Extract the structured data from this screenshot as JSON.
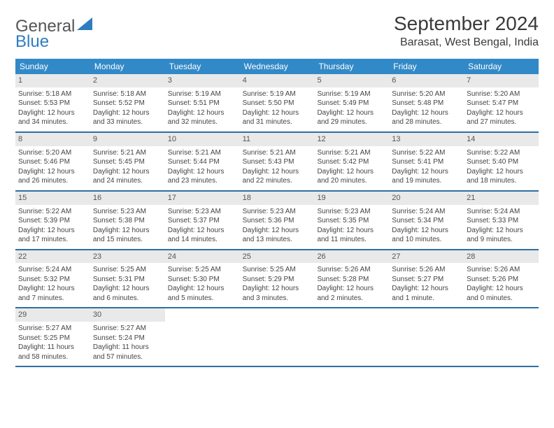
{
  "brand": {
    "part1": "General",
    "part2": "Blue"
  },
  "title": "September 2024",
  "location": "Barasat, West Bengal, India",
  "colors": {
    "header_bg": "#3289c7",
    "week_border": "#2f6fa2",
    "daynum_bg": "#e9e9e9",
    "text": "#444444",
    "brand_gray": "#555555",
    "brand_blue": "#2e7dbf"
  },
  "weekdays": [
    "Sunday",
    "Monday",
    "Tuesday",
    "Wednesday",
    "Thursday",
    "Friday",
    "Saturday"
  ],
  "weeks": [
    [
      {
        "n": "1",
        "sr": "5:18 AM",
        "ss": "5:53 PM",
        "dl": "12 hours and 34 minutes."
      },
      {
        "n": "2",
        "sr": "5:18 AM",
        "ss": "5:52 PM",
        "dl": "12 hours and 33 minutes."
      },
      {
        "n": "3",
        "sr": "5:19 AM",
        "ss": "5:51 PM",
        "dl": "12 hours and 32 minutes."
      },
      {
        "n": "4",
        "sr": "5:19 AM",
        "ss": "5:50 PM",
        "dl": "12 hours and 31 minutes."
      },
      {
        "n": "5",
        "sr": "5:19 AM",
        "ss": "5:49 PM",
        "dl": "12 hours and 29 minutes."
      },
      {
        "n": "6",
        "sr": "5:20 AM",
        "ss": "5:48 PM",
        "dl": "12 hours and 28 minutes."
      },
      {
        "n": "7",
        "sr": "5:20 AM",
        "ss": "5:47 PM",
        "dl": "12 hours and 27 minutes."
      }
    ],
    [
      {
        "n": "8",
        "sr": "5:20 AM",
        "ss": "5:46 PM",
        "dl": "12 hours and 26 minutes."
      },
      {
        "n": "9",
        "sr": "5:21 AM",
        "ss": "5:45 PM",
        "dl": "12 hours and 24 minutes."
      },
      {
        "n": "10",
        "sr": "5:21 AM",
        "ss": "5:44 PM",
        "dl": "12 hours and 23 minutes."
      },
      {
        "n": "11",
        "sr": "5:21 AM",
        "ss": "5:43 PM",
        "dl": "12 hours and 22 minutes."
      },
      {
        "n": "12",
        "sr": "5:21 AM",
        "ss": "5:42 PM",
        "dl": "12 hours and 20 minutes."
      },
      {
        "n": "13",
        "sr": "5:22 AM",
        "ss": "5:41 PM",
        "dl": "12 hours and 19 minutes."
      },
      {
        "n": "14",
        "sr": "5:22 AM",
        "ss": "5:40 PM",
        "dl": "12 hours and 18 minutes."
      }
    ],
    [
      {
        "n": "15",
        "sr": "5:22 AM",
        "ss": "5:39 PM",
        "dl": "12 hours and 17 minutes."
      },
      {
        "n": "16",
        "sr": "5:23 AM",
        "ss": "5:38 PM",
        "dl": "12 hours and 15 minutes."
      },
      {
        "n": "17",
        "sr": "5:23 AM",
        "ss": "5:37 PM",
        "dl": "12 hours and 14 minutes."
      },
      {
        "n": "18",
        "sr": "5:23 AM",
        "ss": "5:36 PM",
        "dl": "12 hours and 13 minutes."
      },
      {
        "n": "19",
        "sr": "5:23 AM",
        "ss": "5:35 PM",
        "dl": "12 hours and 11 minutes."
      },
      {
        "n": "20",
        "sr": "5:24 AM",
        "ss": "5:34 PM",
        "dl": "12 hours and 10 minutes."
      },
      {
        "n": "21",
        "sr": "5:24 AM",
        "ss": "5:33 PM",
        "dl": "12 hours and 9 minutes."
      }
    ],
    [
      {
        "n": "22",
        "sr": "5:24 AM",
        "ss": "5:32 PM",
        "dl": "12 hours and 7 minutes."
      },
      {
        "n": "23",
        "sr": "5:25 AM",
        "ss": "5:31 PM",
        "dl": "12 hours and 6 minutes."
      },
      {
        "n": "24",
        "sr": "5:25 AM",
        "ss": "5:30 PM",
        "dl": "12 hours and 5 minutes."
      },
      {
        "n": "25",
        "sr": "5:25 AM",
        "ss": "5:29 PM",
        "dl": "12 hours and 3 minutes."
      },
      {
        "n": "26",
        "sr": "5:26 AM",
        "ss": "5:28 PM",
        "dl": "12 hours and 2 minutes."
      },
      {
        "n": "27",
        "sr": "5:26 AM",
        "ss": "5:27 PM",
        "dl": "12 hours and 1 minute."
      },
      {
        "n": "28",
        "sr": "5:26 AM",
        "ss": "5:26 PM",
        "dl": "12 hours and 0 minutes."
      }
    ],
    [
      {
        "n": "29",
        "sr": "5:27 AM",
        "ss": "5:25 PM",
        "dl": "11 hours and 58 minutes."
      },
      {
        "n": "30",
        "sr": "5:27 AM",
        "ss": "5:24 PM",
        "dl": "11 hours and 57 minutes."
      },
      null,
      null,
      null,
      null,
      null
    ]
  ],
  "labels": {
    "sunrise": "Sunrise: ",
    "sunset": "Sunset: ",
    "daylight": "Daylight: "
  }
}
